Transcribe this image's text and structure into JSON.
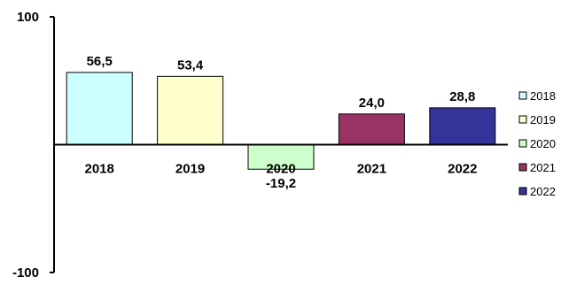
{
  "chart_data": {
    "type": "bar",
    "categories": [
      "2018",
      "2019",
      "2020",
      "2021",
      "2022"
    ],
    "values": [
      56.5,
      53.4,
      -19.2,
      24.0,
      28.8
    ],
    "value_labels": [
      "56,5",
      "53,4",
      "-19,2",
      "24,0",
      "28,8"
    ],
    "colors": [
      "#CCFFFF",
      "#FFFFCC",
      "#CCFFCC",
      "#993366",
      "#333399"
    ],
    "ylim": [
      -100,
      100
    ],
    "y_ticks": [
      100,
      -100
    ],
    "y_tick_labels": [
      "100",
      "-100"
    ],
    "grid": false,
    "legend": {
      "placement": "right",
      "entries": [
        "2018",
        "2019",
        "2020",
        "2021",
        "2022"
      ]
    },
    "title": "",
    "xlabel": "",
    "ylabel": ""
  }
}
